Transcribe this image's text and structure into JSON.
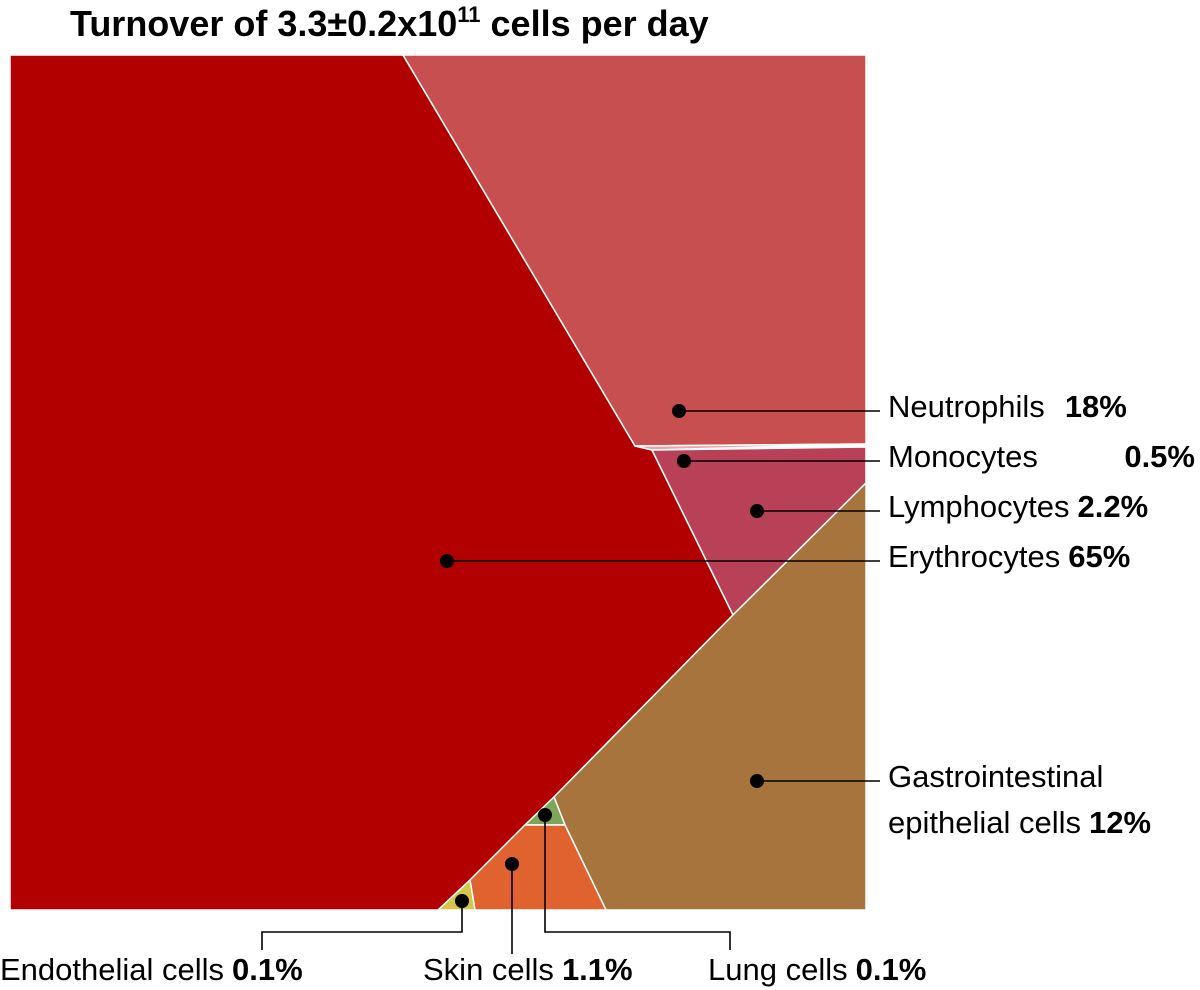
{
  "chart_data": {
    "type": "voronoi-treemap",
    "title": {
      "prefix": "Turnover of 3.3",
      "pm": "±",
      "mid": "0.2x10",
      "exp": "11",
      "suffix": " cells per day"
    },
    "total": "3.3±0.2x10^11 cells per day",
    "unit": "% of daily cell turnover",
    "cells": [
      {
        "name": "Erythrocytes",
        "value": 65,
        "label": "65%",
        "color": "#b20000"
      },
      {
        "name": "Neutrophils",
        "value": 18,
        "label": "18%",
        "color": "#c84f4f"
      },
      {
        "name": "Monocytes",
        "value": 0.5,
        "label": "0.5%",
        "color": "#eda3a3"
      },
      {
        "name": "Lymphocytes",
        "value": 2.2,
        "label": "2.2%",
        "color": "#b94157"
      },
      {
        "name": "Gastrointestinal epithelial cells",
        "name_lines": [
          "Gastrointestinal",
          "epithelial cells"
        ],
        "value": 12,
        "label": "12%",
        "color": "#a7743e"
      },
      {
        "name": "Lung cells",
        "value": 0.1,
        "label": "0.1%",
        "color": "#7da65b"
      },
      {
        "name": "Skin cells",
        "value": 1.1,
        "label": "1.1%",
        "color": "#e0622f"
      },
      {
        "name": "Endothelial cells",
        "value": 0.1,
        "label": "0.1%",
        "color": "#d5c64a"
      }
    ]
  }
}
